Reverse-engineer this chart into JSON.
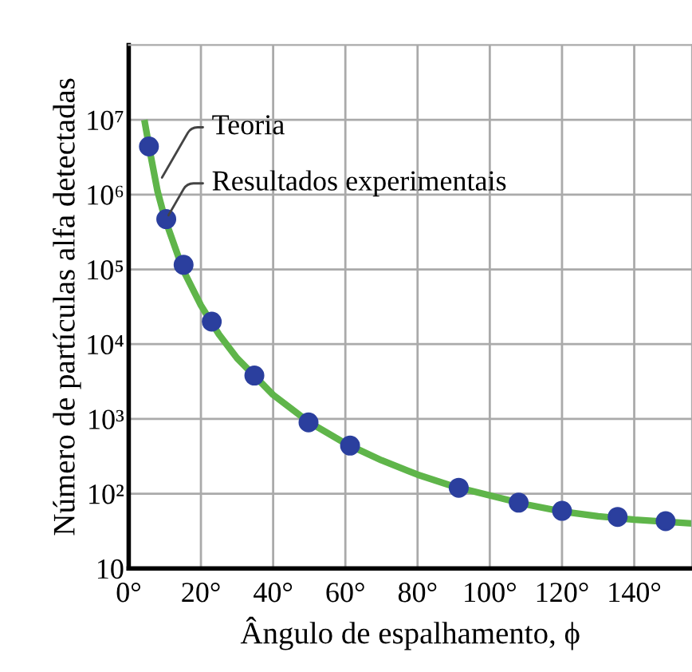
{
  "chart_data": {
    "type": "line",
    "xlabel": "Ângulo de espalhamento, ϕ",
    "ylabel": "Número de partículas alfa detectadas",
    "log": "y",
    "grid": true,
    "xlim": [
      0,
      156
    ],
    "ylim": [
      10,
      100000000
    ],
    "xticks": [
      {
        "value": 0,
        "label": "0°"
      },
      {
        "value": 20,
        "label": "20°"
      },
      {
        "value": 40,
        "label": "40°"
      },
      {
        "value": 60,
        "label": "60°"
      },
      {
        "value": 80,
        "label": "80°"
      },
      {
        "value": 100,
        "label": "100°"
      },
      {
        "value": 120,
        "label": "120°"
      },
      {
        "value": 140,
        "label": "140°"
      }
    ],
    "yticks": [
      10,
      {
        "value": 100,
        "label": "10²"
      },
      {
        "value": 1000,
        "label": "10³"
      },
      {
        "value": 10000,
        "label": "10⁴"
      },
      {
        "value": 100000,
        "label": "10⁵"
      },
      {
        "value": 1000000,
        "label": "10⁶"
      },
      {
        "value": 10000000,
        "label": "10⁷"
      }
    ],
    "series": [
      {
        "color": "#5fb54a",
        "x": [
          4.5,
          6,
          8,
          10,
          15,
          20,
          25,
          30,
          40,
          50,
          60,
          70,
          80,
          90,
          100,
          110,
          120,
          130,
          140,
          156
        ],
        "values": [
          9000000,
          3500000,
          1100000,
          480000,
          100000,
          33000,
          13500,
          6500,
          2100,
          900,
          470,
          280,
          180,
          125,
          95,
          72,
          58,
          50,
          45,
          40
        ]
      },
      {
        "type": "scatter",
        "color": "#2b3f9e",
        "marker": "circle",
        "x": [
          5.6,
          10.4,
          15.2,
          23,
          34.8,
          49.8,
          61.3,
          91.4,
          108,
          120,
          135.4,
          148.7
        ],
        "values": [
          4400000,
          470000,
          115000,
          20000,
          3800,
          900,
          440,
          120,
          76,
          59,
          49,
          43
        ]
      }
    ],
    "annotations": [
      {
        "text": "Teoria",
        "x": 8.6,
        "y": 1500000
      },
      {
        "text": "Resultados experimentais",
        "x": 10.4,
        "y": 470000
      }
    ]
  }
}
